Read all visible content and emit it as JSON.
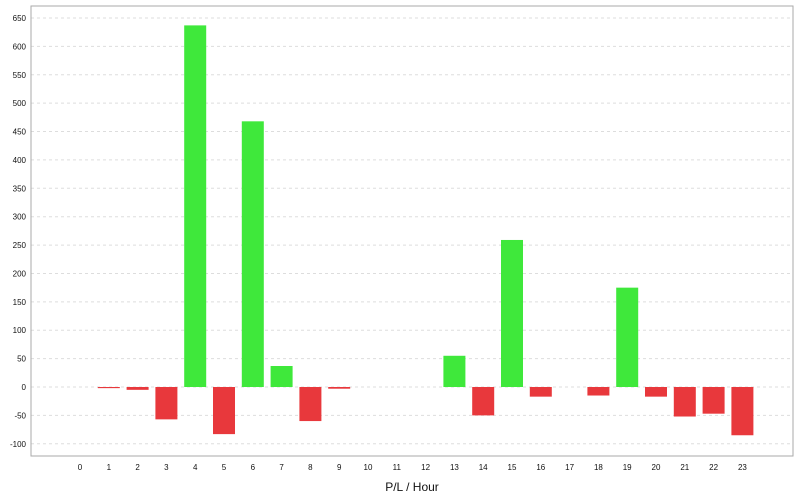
{
  "chart_data": {
    "type": "bar",
    "title": "",
    "xlabel": "P/L / Hour",
    "ylabel": "",
    "categories": [
      "0",
      "1",
      "2",
      "3",
      "4",
      "5",
      "6",
      "7",
      "8",
      "9",
      "10",
      "11",
      "12",
      "13",
      "14",
      "15",
      "16",
      "17",
      "18",
      "19",
      "20",
      "21",
      "22",
      "23"
    ],
    "values": [
      0,
      -2,
      -5,
      -57,
      637,
      -83,
      468,
      37,
      -60,
      -3,
      0,
      0,
      0,
      55,
      -50,
      259,
      -17,
      0,
      -15,
      175,
      -17,
      -52,
      -47,
      -85
    ],
    "ylim": [
      -120,
      670
    ],
    "yticks": [
      -100,
      -50,
      0,
      50,
      100,
      150,
      200,
      250,
      300,
      350,
      400,
      450,
      500,
      550,
      600,
      650
    ],
    "grid": true,
    "legend": "none",
    "colors": {
      "positive": "#3fe83b",
      "negative": "#e8383c",
      "grid": "#dddddd",
      "border": "#aaaaaa"
    }
  }
}
